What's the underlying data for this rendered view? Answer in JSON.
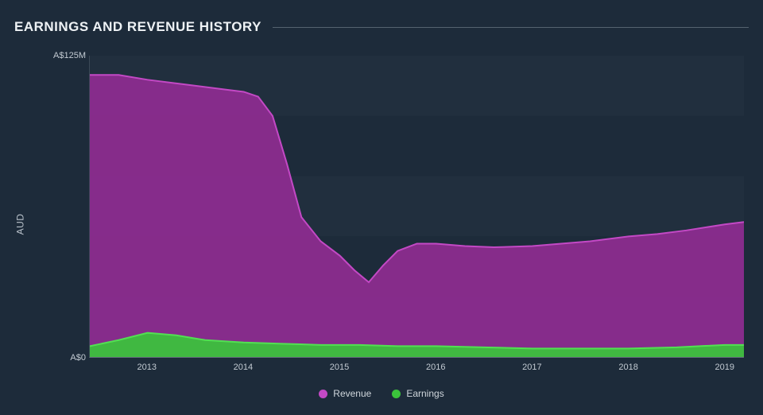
{
  "chart": {
    "type": "area",
    "title": "EARNINGS AND REVENUE HISTORY",
    "y_axis_label": "AUD",
    "background_color": "#1d2b3a",
    "plot_background_color": "#1d2b3a",
    "grid_band_colors": [
      "#212f3e",
      "#1d2b3a"
    ],
    "grid_band_count": 5,
    "axis_color": "#64707c",
    "text_color": "#c2cad2",
    "title_rule_color": "#55626f",
    "title_fontsize": 17,
    "label_fontsize": 12,
    "tick_fontsize": 11,
    "x": {
      "min": 2012.4,
      "max": 2019.2,
      "ticks": [
        2013,
        2014,
        2015,
        2016,
        2017,
        2018,
        2019
      ],
      "tick_labels": [
        "2013",
        "2014",
        "2015",
        "2016",
        "2017",
        "2018",
        "2019"
      ]
    },
    "y": {
      "min": 0,
      "max": 125,
      "ticks": [
        0,
        125
      ],
      "tick_labels": [
        "A$0",
        "A$125M"
      ]
    },
    "series": [
      {
        "name": "Revenue",
        "fill_color": "#8f2d91",
        "fill_opacity": 0.92,
        "stroke_color": "#c349c5",
        "stroke_width": 2,
        "points": [
          [
            2012.4,
            117
          ],
          [
            2012.7,
            117
          ],
          [
            2013.0,
            115
          ],
          [
            2013.4,
            113
          ],
          [
            2013.8,
            111
          ],
          [
            2014.0,
            110
          ],
          [
            2014.15,
            108
          ],
          [
            2014.3,
            100
          ],
          [
            2014.45,
            80
          ],
          [
            2014.6,
            58
          ],
          [
            2014.8,
            48
          ],
          [
            2015.0,
            42
          ],
          [
            2015.15,
            36
          ],
          [
            2015.3,
            31
          ],
          [
            2015.45,
            38
          ],
          [
            2015.6,
            44
          ],
          [
            2015.8,
            47
          ],
          [
            2016.0,
            47
          ],
          [
            2016.3,
            46
          ],
          [
            2016.6,
            45.5
          ],
          [
            2017.0,
            46
          ],
          [
            2017.3,
            47
          ],
          [
            2017.6,
            48
          ],
          [
            2018.0,
            50
          ],
          [
            2018.3,
            51
          ],
          [
            2018.6,
            52.5
          ],
          [
            2019.0,
            55
          ],
          [
            2019.2,
            56
          ]
        ]
      },
      {
        "name": "Earnings",
        "fill_color": "#3bc43b",
        "fill_opacity": 0.92,
        "stroke_color": "#52e052",
        "stroke_width": 2,
        "points": [
          [
            2012.4,
            4.5
          ],
          [
            2012.7,
            7
          ],
          [
            2013.0,
            10
          ],
          [
            2013.3,
            9
          ],
          [
            2013.6,
            7
          ],
          [
            2014.0,
            6
          ],
          [
            2014.4,
            5.5
          ],
          [
            2014.8,
            5
          ],
          [
            2015.2,
            5
          ],
          [
            2015.6,
            4.5
          ],
          [
            2016.0,
            4.5
          ],
          [
            2016.5,
            4
          ],
          [
            2017.0,
            3.5
          ],
          [
            2017.5,
            3.5
          ],
          [
            2018.0,
            3.5
          ],
          [
            2018.5,
            4
          ],
          [
            2019.0,
            5
          ],
          [
            2019.2,
            5
          ]
        ]
      }
    ],
    "legend": {
      "items": [
        {
          "label": "Revenue",
          "color": "#c349c5"
        },
        {
          "label": "Earnings",
          "color": "#3bc43b"
        }
      ]
    }
  }
}
